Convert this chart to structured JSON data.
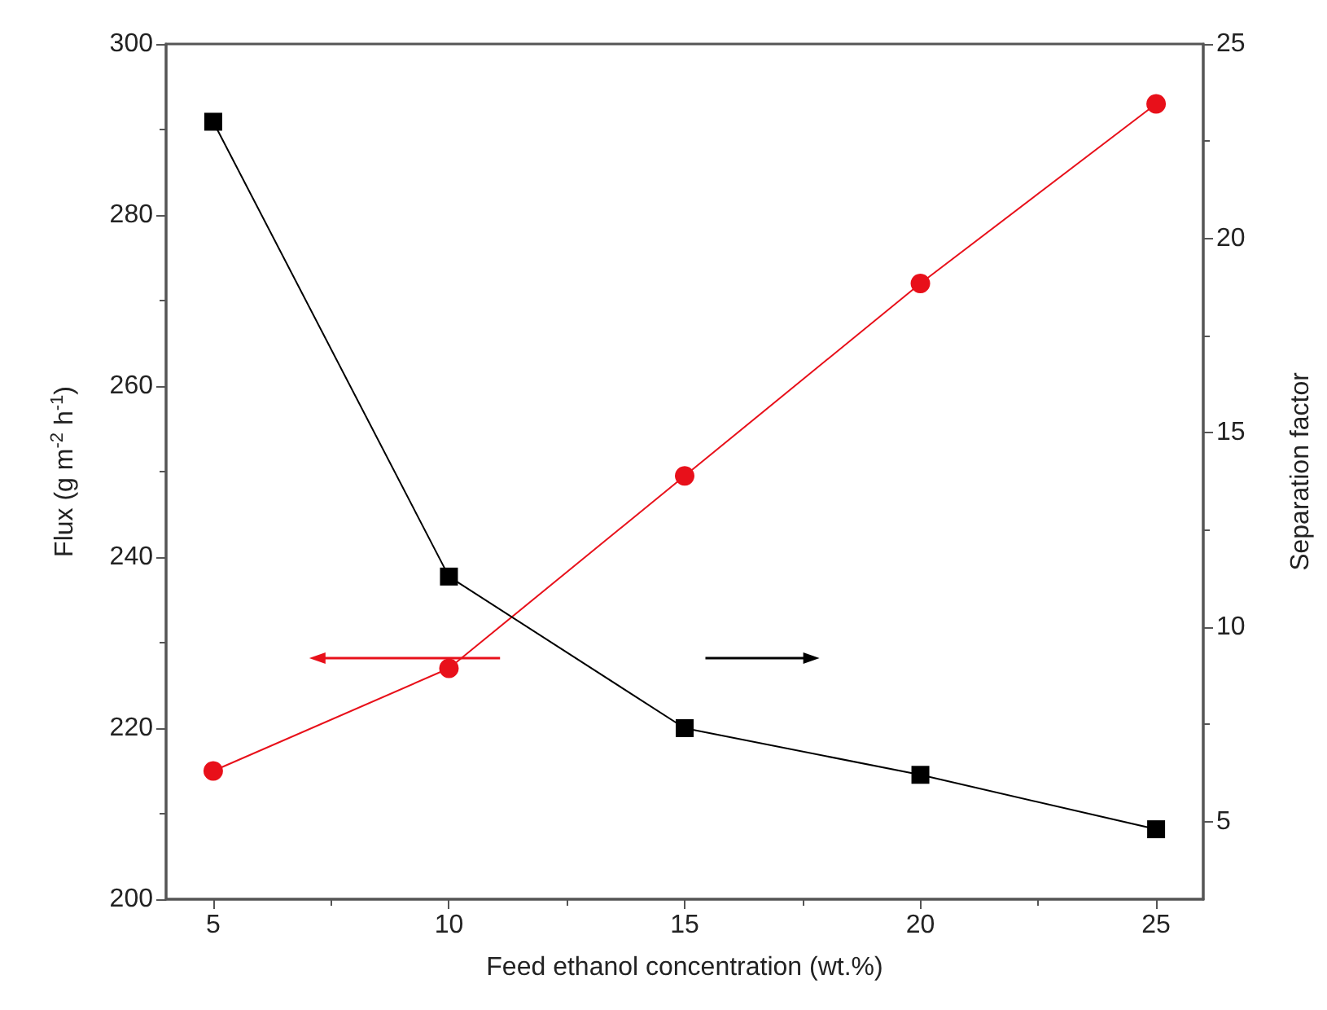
{
  "chart_data": {
    "type": "line",
    "xlabel": "Feed ethanol concentration (wt.%)",
    "ylabel": "Flux (g m$^{-2}$ h$^{-1}$)",
    "y2label": "Separation factor",
    "x": [
      5,
      10,
      15,
      20,
      25
    ],
    "series": [
      {
        "color": "#e8101a",
        "marker": "circle",
        "values": [
          215,
          227,
          249.5,
          272,
          293
        ]
      },
      {
        "color": "#000000",
        "marker": "square",
        "axis": "y2",
        "values": [
          23.0,
          11.3,
          7.4,
          6.2,
          4.8
        ]
      }
    ],
    "xlim": [
      4,
      26
    ],
    "xticks": [
      5,
      10,
      15,
      20,
      25
    ],
    "ylim": [
      200,
      300
    ],
    "yticks": [
      200,
      220,
      240,
      260,
      280,
      300
    ],
    "y2lim": [
      3,
      25
    ],
    "y2ticks": [
      5,
      10,
      15,
      20,
      25
    ],
    "grid": false,
    "legend": false,
    "line_style": "solid"
  }
}
